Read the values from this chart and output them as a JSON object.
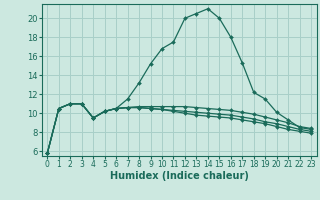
{
  "xlabel": "Humidex (Indice chaleur)",
  "bg_color": "#cce8e0",
  "grid_color": "#a8cfc8",
  "line_color": "#1a6b5a",
  "xlim": [
    -0.5,
    23.5
  ],
  "ylim": [
    5.5,
    21.5
  ],
  "x_ticks": [
    0,
    1,
    2,
    3,
    4,
    5,
    6,
    7,
    8,
    9,
    10,
    11,
    12,
    13,
    14,
    15,
    16,
    17,
    18,
    19,
    20,
    21,
    22,
    23
  ],
  "y_ticks": [
    6,
    8,
    10,
    12,
    14,
    16,
    18,
    20
  ],
  "curves": [
    [
      5.8,
      10.5,
      11.0,
      11.0,
      9.5,
      10.2,
      10.5,
      11.5,
      13.2,
      15.2,
      16.8,
      17.5,
      20.0,
      20.5,
      21.0,
      20.0,
      18.0,
      15.3,
      12.2,
      11.5,
      10.1,
      9.3,
      8.5,
      8.3
    ],
    [
      5.8,
      10.5,
      11.0,
      11.0,
      9.5,
      10.2,
      10.5,
      10.6,
      10.7,
      10.7,
      10.7,
      10.7,
      10.7,
      10.6,
      10.5,
      10.4,
      10.3,
      10.1,
      9.9,
      9.6,
      9.3,
      9.0,
      8.6,
      8.4
    ],
    [
      5.8,
      10.5,
      11.0,
      11.0,
      9.5,
      10.2,
      10.5,
      10.6,
      10.6,
      10.5,
      10.4,
      10.3,
      10.2,
      10.1,
      10.0,
      9.9,
      9.8,
      9.6,
      9.4,
      9.1,
      8.9,
      8.6,
      8.3,
      8.1
    ],
    [
      5.8,
      10.5,
      11.0,
      11.0,
      9.5,
      10.2,
      10.5,
      10.6,
      10.6,
      10.5,
      10.4,
      10.2,
      10.0,
      9.8,
      9.7,
      9.6,
      9.5,
      9.3,
      9.1,
      8.9,
      8.6,
      8.3,
      8.1,
      7.9
    ]
  ]
}
